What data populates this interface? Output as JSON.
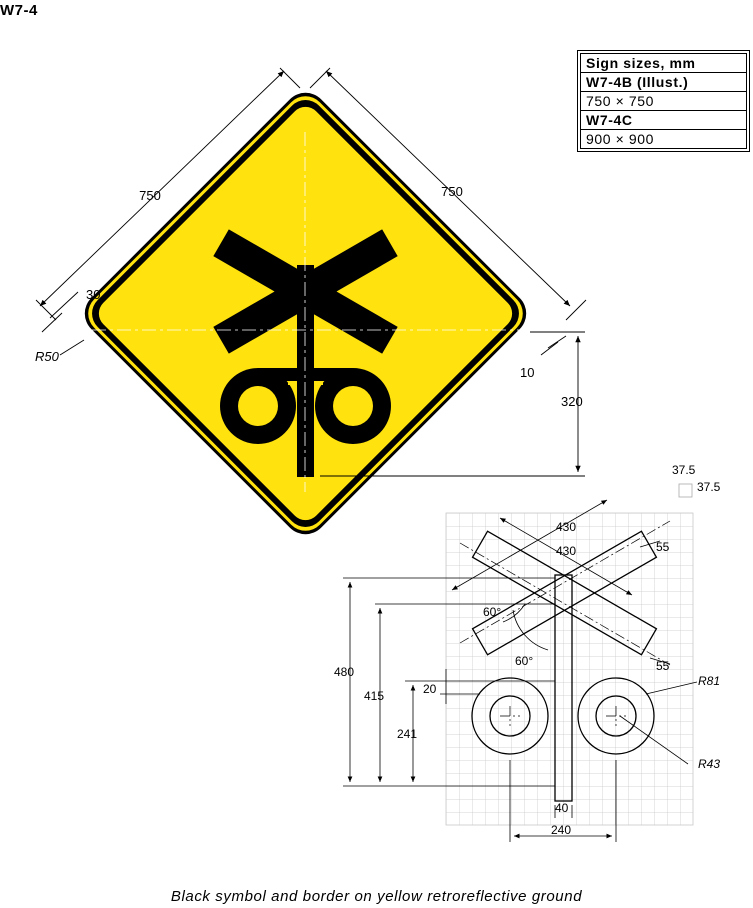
{
  "title": "W7-4",
  "sizes_table": {
    "header": "Sign sizes, mm",
    "rows": [
      {
        "code": "W7-4B (Illust.)",
        "size": "750 × 750"
      },
      {
        "code": "W7-4C",
        "size": "900 × 900"
      }
    ]
  },
  "sign_dims": {
    "side_left": "750",
    "side_right": "750",
    "border_offset": "30",
    "corner_radius": "R50",
    "border_width": "10",
    "center_offset": "320"
  },
  "grid_legend": {
    "h": "37.5",
    "v": "37.5"
  },
  "symbol_dims": {
    "arm_length_1": "430",
    "arm_length_2": "430",
    "arm_width_1": "55",
    "arm_width_2": "55",
    "angle_1": "60°",
    "angle_2": "60°",
    "height_total": "480",
    "height_cross": "415",
    "height_wheels": "241",
    "gap": "20",
    "outer_radius": "R81",
    "inner_radius": "R43",
    "post_width": "40",
    "wheel_spacing": "240"
  },
  "colors": {
    "sign_yellow": "#FFE20E",
    "symbol": "#000000"
  },
  "caption": "Black symbol and border on yellow retroreflective ground"
}
